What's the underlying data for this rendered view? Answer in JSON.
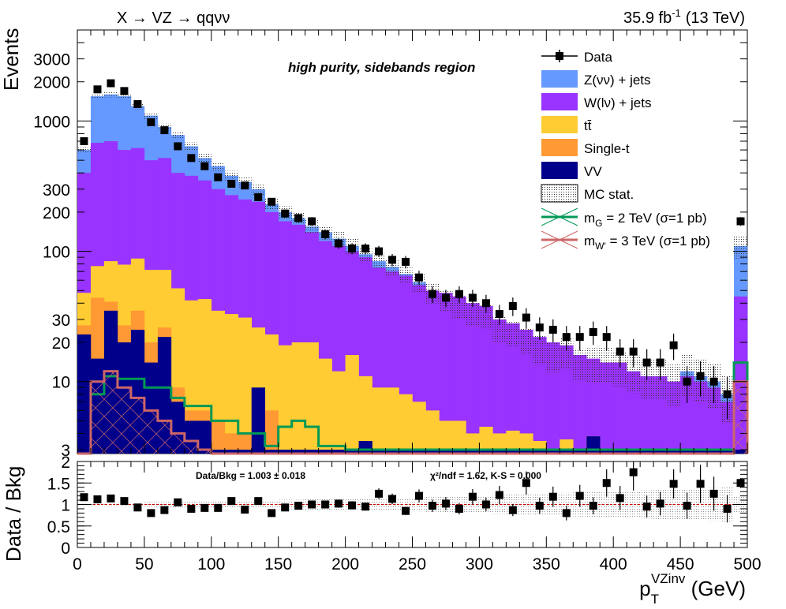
{
  "header": {
    "process": "X → VZ → qqνν",
    "lumi": "35.9 fb",
    "lumi_exp": "-1",
    "energy": "(13 TeV)"
  },
  "annotations": {
    "region": "high purity, sidebands region",
    "ratio_summary": "Data/Bkg = 1.003 ± 0.018",
    "fit_stats": "χ²/ndf = 1.62,   K-S = 0.000"
  },
  "axes": {
    "ylabel_top": "Events",
    "ylabel_bottom": "Data / Bkg",
    "xlabel_main": "p",
    "xlabel_sub": "T",
    "xlabel_sup": "VZinv",
    "xlabel_unit": " (GeV)"
  },
  "chart_data": [
    {
      "type": "bar",
      "stacked": true,
      "log_y": true,
      "xlim": [
        0,
        500
      ],
      "ylim": [
        2.8,
        5000
      ],
      "bin_width": 10,
      "x_ticks": [
        "0",
        "50",
        "100",
        "150",
        "200",
        "250",
        "300",
        "350",
        "400",
        "450",
        "500"
      ],
      "y_ticks": [
        "3",
        "10",
        "20",
        "30",
        "100",
        "200",
        "300",
        "1000",
        "2000",
        "3000"
      ],
      "legend_position": "top-right",
      "stack_series": [
        {
          "name": "VV",
          "key": "vv",
          "color": "#00008b",
          "values": [
            23,
            15,
            35,
            20,
            25,
            14,
            22,
            7,
            5,
            5,
            3,
            3,
            3,
            9,
            3,
            3,
            3,
            3,
            3,
            3,
            3,
            3.5,
            3,
            3,
            3,
            3,
            3,
            3,
            3,
            3,
            3,
            3,
            3,
            3,
            3,
            3,
            3,
            3,
            3.8,
            3,
            3,
            3,
            3,
            3,
            3,
            3,
            3,
            3,
            3,
            3
          ]
        },
        {
          "name": "Single-t",
          "key": "st",
          "color": "#ff9933",
          "values": [
            27,
            44,
            41,
            27,
            35,
            20,
            26,
            9,
            6,
            6,
            5,
            4,
            4,
            9,
            6,
            3,
            3,
            3,
            3,
            3,
            3,
            3.5,
            3,
            3,
            3,
            3,
            3,
            3,
            3,
            3,
            3,
            3,
            3,
            3,
            3,
            3,
            3,
            3,
            3.8,
            3,
            3,
            3,
            3,
            3,
            3,
            3,
            3,
            3,
            3,
            3
          ]
        },
        {
          "name": "tt̄",
          "key": "tt",
          "color": "#ffcc33",
          "values": [
            48,
            77,
            84,
            79,
            88,
            72,
            72,
            52,
            42,
            43,
            35,
            33,
            31,
            26,
            23,
            19,
            20,
            20,
            15,
            12,
            16,
            11,
            9,
            9,
            8,
            7,
            6,
            5,
            5,
            4,
            4.5,
            4,
            4.2,
            4,
            3.5,
            3,
            3.6,
            3,
            3.8,
            3,
            3,
            3,
            3,
            3,
            3,
            3,
            3,
            3,
            3,
            3
          ]
        },
        {
          "name": "W(lν) + jets",
          "key": "wj",
          "color": "#9933ff",
          "values": [
            400,
            680,
            700,
            600,
            620,
            500,
            520,
            400,
            380,
            350,
            300,
            270,
            250,
            240,
            200,
            170,
            160,
            140,
            120,
            110,
            100,
            90,
            75,
            70,
            65,
            55,
            50,
            48,
            45,
            40,
            38,
            30,
            28,
            25,
            22,
            20,
            19,
            16,
            15,
            14,
            14,
            12,
            11,
            11,
            10,
            11,
            10,
            9,
            7,
            45
          ]
        },
        {
          "name": "Z(νν) + jets",
          "key": "zj",
          "color": "#6699ff",
          "values": [
            600,
            1550,
            1600,
            1550,
            1300,
            1100,
            900,
            780,
            640,
            520,
            450,
            380,
            340,
            300,
            230,
            200,
            180,
            155,
            140,
            125,
            110,
            95,
            84,
            76,
            67,
            58,
            48,
            42,
            38,
            34,
            32,
            26,
            24,
            21,
            18,
            16,
            17,
            14,
            14,
            14,
            13,
            12,
            11,
            11,
            10,
            12,
            11,
            10,
            8,
            110
          ]
        }
      ],
      "data_series": {
        "name": "Data",
        "values": [
          700,
          1750,
          1950,
          1700,
          1350,
          980,
          850,
          640,
          520,
          450,
          370,
          330,
          320,
          260,
          240,
          195,
          180,
          170,
          135,
          115,
          105,
          105,
          100,
          86,
          83,
          63,
          47,
          44,
          47,
          44,
          40,
          33,
          38,
          31,
          26,
          25,
          22,
          22,
          24,
          22,
          17,
          17,
          14,
          14,
          19,
          10,
          11,
          10,
          8,
          170
        ]
      },
      "uncertainty": {
        "name": "MC stat.",
        "relative": [
          0.05,
          0.05,
          0.05,
          0.05,
          0.05,
          0.06,
          0.06,
          0.07,
          0.07,
          0.08,
          0.08,
          0.09,
          0.09,
          0.1,
          0.1,
          0.11,
          0.11,
          0.12,
          0.12,
          0.13,
          0.13,
          0.14,
          0.14,
          0.15,
          0.15,
          0.16,
          0.17,
          0.18,
          0.19,
          0.2,
          0.21,
          0.22,
          0.23,
          0.24,
          0.25,
          0.26,
          0.27,
          0.28,
          0.29,
          0.3,
          0.31,
          0.32,
          0.33,
          0.34,
          0.35,
          0.36,
          0.37,
          0.38,
          0.4,
          0.2
        ]
      },
      "signals": [
        {
          "name_base": "m",
          "name_sub": "G",
          "name_rest": " = 2 TeV (σ=1 pb)",
          "key": "sig1",
          "color": "#009955",
          "values": [
            2.8,
            8,
            11,
            10.5,
            10.5,
            9,
            9,
            7.5,
            6.5,
            6.5,
            5,
            5,
            4,
            4,
            3.2,
            4.5,
            5,
            4.5,
            3.2,
            3.2,
            3,
            3,
            3,
            3,
            3,
            3,
            3,
            3,
            3,
            3,
            3,
            3,
            3,
            3,
            3,
            3,
            3,
            3,
            3,
            3,
            3,
            3,
            3,
            3,
            3,
            3,
            3,
            3,
            3,
            14
          ]
        },
        {
          "name_base": "m",
          "name_sub": "W'",
          "name_rest": " = 3 TeV (σ=1 pb)",
          "key": "sig2",
          "color": "#cc6666",
          "values": [
            2.8,
            10,
            12,
            9,
            7.5,
            6,
            5,
            4,
            3.5,
            3,
            2.8,
            2.8,
            2.8,
            2.8,
            2.8,
            2.8,
            2.8,
            2.8,
            2.8,
            2.8,
            2.8,
            2.8,
            2.8,
            2.8,
            2.8,
            2.8,
            2.8,
            2.8,
            2.8,
            2.8,
            2.8,
            2.8,
            2.8,
            2.8,
            2.8,
            2.8,
            2.8,
            2.8,
            2.8,
            2.8,
            2.8,
            2.8,
            2.8,
            2.8,
            2.8,
            2.8,
            2.8,
            2.8,
            2.8,
            10
          ]
        }
      ]
    },
    {
      "type": "scatter",
      "xlim": [
        0,
        500
      ],
      "ylim": [
        0,
        2
      ],
      "y_ticks": [
        "0",
        "0.5",
        "1",
        "1.5",
        "2"
      ],
      "reference_line": 1,
      "ratio_values": [
        1.17,
        1.12,
        1.14,
        1.08,
        0.93,
        0.8,
        0.87,
        1.05,
        0.9,
        0.92,
        0.92,
        1.08,
        0.88,
        1.08,
        0.8,
        0.93,
        0.97,
        1.0,
        1.0,
        1.02,
        0.98,
        0.95,
        1.25,
        1.13,
        0.85,
        1.2,
        0.97,
        1.02,
        0.9,
        1.18,
        1.0,
        1.22,
        0.87,
        1.5,
        0.97,
        1.18,
        0.8,
        1.2,
        0.97,
        1.5,
        1.15,
        1.75,
        0.95,
        1.02,
        1.48,
        0.97,
        1.48,
        1.25,
        0.9,
        1.5
      ],
      "band_relative": [
        0.05,
        0.05,
        0.05,
        0.05,
        0.05,
        0.06,
        0.06,
        0.07,
        0.07,
        0.08,
        0.08,
        0.09,
        0.09,
        0.1,
        0.1,
        0.11,
        0.11,
        0.12,
        0.12,
        0.13,
        0.13,
        0.14,
        0.14,
        0.15,
        0.15,
        0.16,
        0.17,
        0.18,
        0.19,
        0.2,
        0.21,
        0.22,
        0.23,
        0.24,
        0.25,
        0.26,
        0.27,
        0.28,
        0.29,
        0.3,
        0.31,
        0.32,
        0.33,
        0.34,
        0.35,
        0.36,
        0.37,
        0.38,
        0.4,
        0.2
      ]
    }
  ]
}
